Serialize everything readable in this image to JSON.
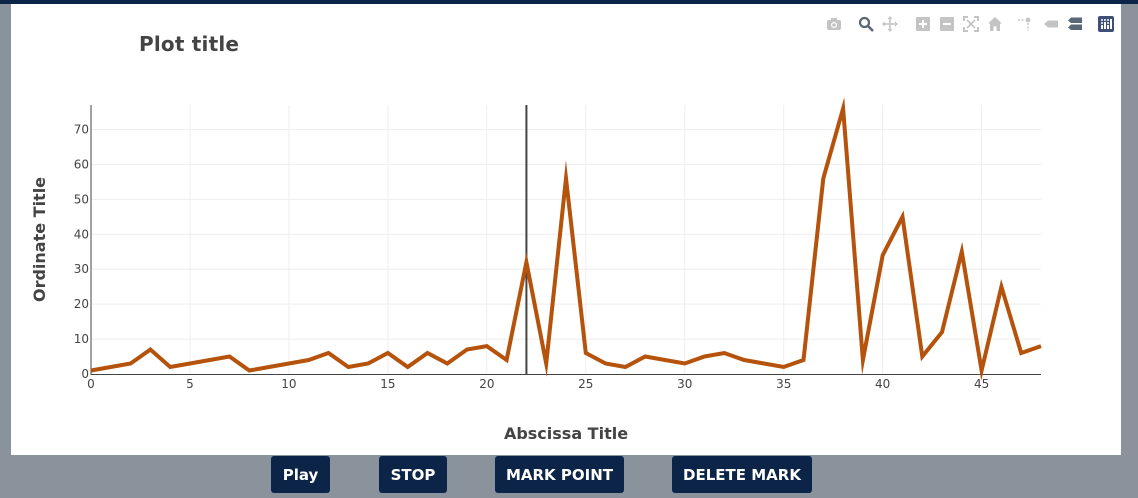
{
  "chart_data": {
    "type": "line",
    "title": "Plot title",
    "xlabel": "Abscissa Title",
    "ylabel": "Ordinate Title",
    "xlim": [
      0,
      48
    ],
    "ylim": [
      0,
      77
    ],
    "x_ticks": [
      0,
      5,
      10,
      15,
      20,
      25,
      30,
      35,
      40,
      45
    ],
    "y_ticks": [
      0,
      10,
      20,
      30,
      40,
      50,
      60,
      70
    ],
    "grid": true,
    "marker_x": 22,
    "series": [
      {
        "color": "#b5520b",
        "x": [
          0,
          1,
          2,
          3,
          4,
          5,
          6,
          7,
          8,
          9,
          10,
          11,
          12,
          13,
          14,
          15,
          16,
          17,
          18,
          19,
          20,
          21,
          22,
          23,
          24,
          25,
          26,
          27,
          28,
          29,
          30,
          31,
          32,
          33,
          34,
          35,
          36,
          37,
          38,
          39,
          40,
          41,
          42,
          43,
          44,
          45,
          46,
          47,
          48
        ],
        "y": [
          1,
          2,
          3,
          7,
          2,
          3,
          4,
          5,
          1,
          2,
          3,
          4,
          6,
          2,
          3,
          6,
          2,
          6,
          3,
          7,
          8,
          4,
          32,
          3,
          56,
          6,
          3,
          2,
          5,
          4,
          3,
          5,
          6,
          4,
          3,
          2,
          4,
          56,
          76,
          4,
          34,
          45,
          5,
          12,
          35,
          1,
          25,
          6,
          8
        ]
      }
    ]
  },
  "modebar": {
    "icons": [
      "camera-icon",
      "zoom-icon",
      "pan-icon",
      "zoom-in-icon",
      "zoom-out-icon",
      "autoscale-icon",
      "reset-axes-icon",
      "spike-lines-icon",
      "hover-closest-icon",
      "hover-compare-icon",
      "plotly-logo-icon"
    ]
  },
  "controls": {
    "play_label": "Play",
    "stop_label": "STOP",
    "mark_label": "MARK POINT",
    "delete_label": "DELETE MARK"
  },
  "colors": {
    "line": "#b5520b",
    "button_bg": "#0d2449",
    "background": "#8a939c"
  }
}
